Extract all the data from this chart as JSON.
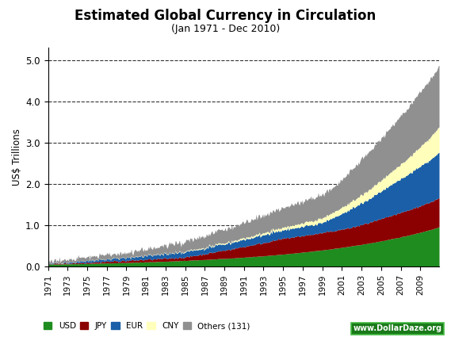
{
  "title": "Estimated Global Currency in Circulation",
  "subtitle": "(Jan 1971 - Dec 2010)",
  "ylabel": "US$ Trillions",
  "background_color": "#ffffff",
  "plot_bg_color": "#ffffff",
  "title_fontsize": 12,
  "subtitle_fontsize": 9,
  "colors": {
    "USD": "#1e8c1e",
    "JPY": "#8b0000",
    "EUR": "#1a5fa8",
    "CNY": "#ffffbb",
    "Others": "#909090"
  },
  "legend_labels": [
    "USD",
    "JPY",
    "EUR",
    "CNY",
    "Others (131)"
  ],
  "watermark": "www.DollarDaze.org",
  "ylim": [
    0,
    5.3
  ],
  "yticks": [
    0.0,
    1.0,
    2.0,
    3.0,
    4.0,
    5.0
  ],
  "xtick_years": [
    1971,
    1973,
    1975,
    1977,
    1979,
    1981,
    1983,
    1985,
    1987,
    1989,
    1991,
    1993,
    1995,
    1997,
    1999,
    2001,
    2003,
    2005,
    2007,
    2009
  ]
}
